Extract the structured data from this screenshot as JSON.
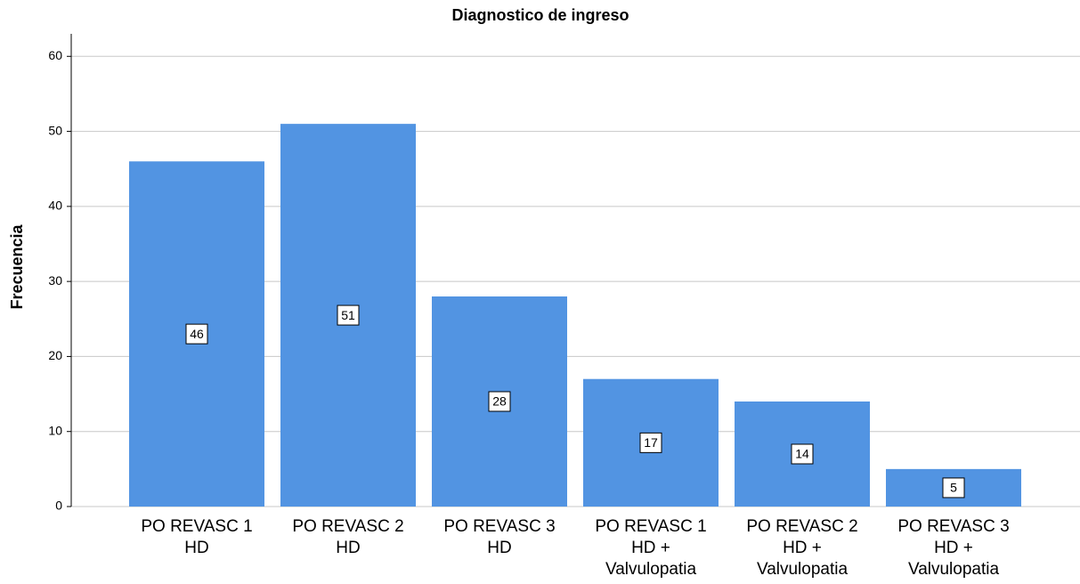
{
  "chart_data": {
    "type": "bar",
    "title": "Diagnostico de ingreso",
    "y_label": "Frecuencia",
    "categories": [
      [
        "PO REVASC 1",
        "HD"
      ],
      [
        "PO REVASC 2",
        "HD"
      ],
      [
        "PO REVASC 3",
        "HD"
      ],
      [
        "PO REVASC 1",
        "HD +",
        "Valvulopatia"
      ],
      [
        "PO REVASC 2",
        "HD +",
        "Valvulopatia"
      ],
      [
        "PO REVASC 3",
        "HD +",
        "Valvulopatia"
      ]
    ],
    "values": [
      46,
      51,
      28,
      17,
      14,
      5
    ],
    "color": "#5294e2",
    "ylim": [
      0,
      63
    ],
    "yticks": [
      0,
      10,
      20,
      30,
      40,
      50,
      60
    ],
    "grid": true
  }
}
